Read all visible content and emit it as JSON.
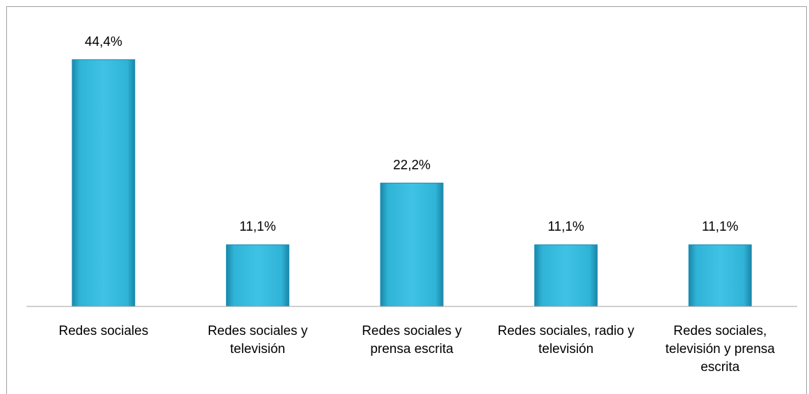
{
  "chart_data": {
    "type": "bar",
    "categories": [
      "Redes sociales",
      "Redes sociales y televisión",
      "Redes sociales y prensa escrita",
      "Redes sociales, radio y televisión",
      "Redes sociales, televisión y prensa escrita"
    ],
    "values": [
      44.4,
      11.1,
      22.2,
      11.1,
      11.1
    ],
    "value_labels": [
      "44,4%",
      "11,1%",
      "22,2%",
      "11,1%",
      "11,1%"
    ],
    "color": "#2eb4d8",
    "ylim": [
      0,
      50
    ]
  }
}
